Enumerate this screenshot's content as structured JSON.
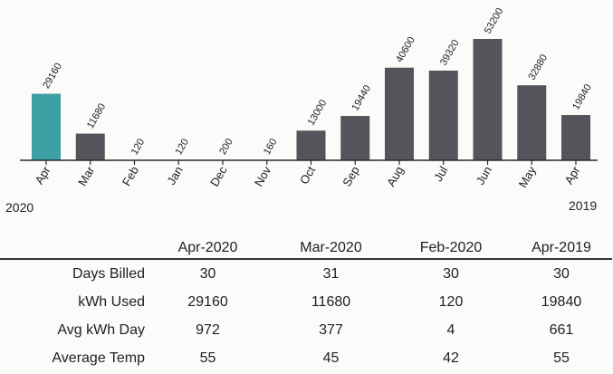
{
  "chart_data": {
    "type": "bar",
    "categories": [
      "Apr",
      "Mar",
      "Feb",
      "Jan",
      "Dec",
      "Nov",
      "Oct",
      "Sep",
      "Aug",
      "Jul",
      "Jun",
      "May",
      "Apr"
    ],
    "values": [
      29160,
      11680,
      120,
      120,
      200,
      160,
      13000,
      19440,
      40600,
      39320,
      53200,
      32880,
      19840
    ],
    "data_labels": [
      "29160",
      "11680",
      "120",
      "120",
      "200",
      "160",
      "13000",
      "19440",
      "40600",
      "39320",
      "53200",
      "32880",
      "19840"
    ],
    "highlight_index": 0,
    "colors": {
      "highlight": "#3d9ea3",
      "bar": "#56535a",
      "axis": "#2a2a2a"
    },
    "ylim": [
      0,
      55000
    ],
    "year_labels": {
      "start": "2020",
      "end": "2019"
    }
  },
  "table": {
    "headers": [
      "Apr-2020",
      "Mar-2020",
      "Feb-2020",
      "Apr-2019"
    ],
    "rows": [
      {
        "label": "Days Billed",
        "values": [
          "30",
          "31",
          "30",
          "30"
        ]
      },
      {
        "label": "kWh Used",
        "values": [
          "29160",
          "11680",
          "120",
          "19840"
        ]
      },
      {
        "label": "Avg kWh Day",
        "values": [
          "972",
          "377",
          "4",
          "661"
        ]
      },
      {
        "label": "Average Temp",
        "values": [
          "55",
          "45",
          "42",
          "55"
        ]
      }
    ]
  }
}
